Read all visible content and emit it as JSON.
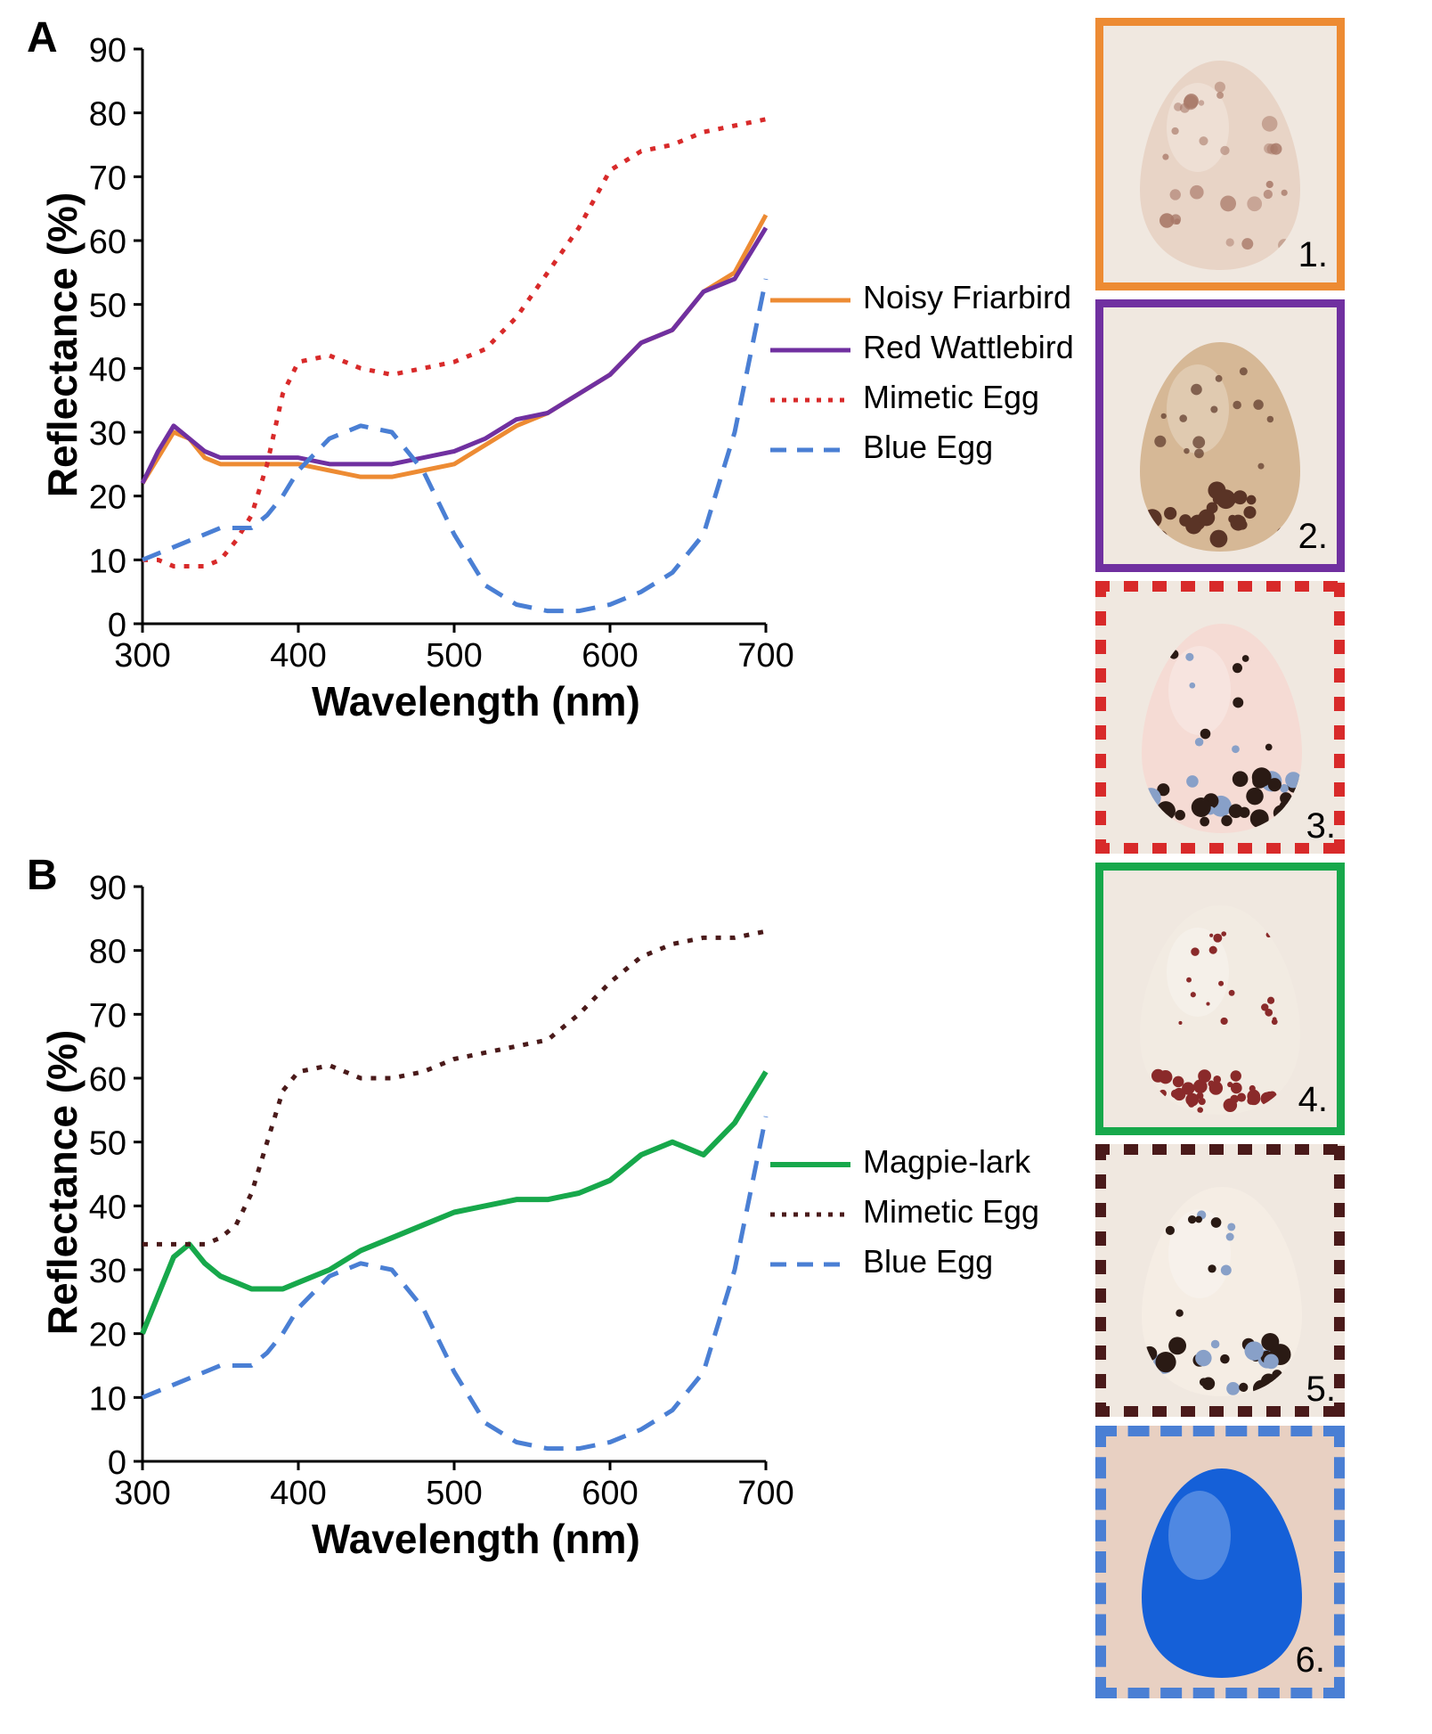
{
  "chartA": {
    "type": "line",
    "label": "A",
    "xlabel": "Wavelength (nm)",
    "ylabel": "Reflectance (%)",
    "xlim": [
      300,
      700
    ],
    "ylim": [
      0,
      90
    ],
    "xtick_step": 100,
    "ytick_step": 10,
    "tick_fontsize": 38,
    "label_fontsize": 46,
    "label_fontweight": "bold",
    "grid": false,
    "background_color": "#ffffff",
    "axis_color": "#000000",
    "series": [
      {
        "name": "Noisy Friarbird",
        "color": "#ed8b33",
        "dash": "none",
        "width": 5,
        "x": [
          300,
          310,
          320,
          330,
          340,
          350,
          360,
          370,
          380,
          390,
          400,
          420,
          440,
          460,
          480,
          500,
          520,
          540,
          560,
          580,
          600,
          620,
          640,
          660,
          680,
          700
        ],
        "y": [
          22,
          26,
          30,
          29,
          26,
          25,
          25,
          25,
          25,
          25,
          25,
          24,
          23,
          23,
          24,
          25,
          28,
          31,
          33,
          36,
          39,
          44,
          46,
          52,
          55,
          64
        ]
      },
      {
        "name": "Red Wattlebird",
        "color": "#7030a0",
        "dash": "none",
        "width": 5,
        "x": [
          300,
          310,
          320,
          330,
          340,
          350,
          360,
          370,
          380,
          390,
          400,
          420,
          440,
          460,
          480,
          500,
          520,
          540,
          560,
          580,
          600,
          620,
          640,
          660,
          680,
          700
        ],
        "y": [
          22,
          27,
          31,
          29,
          27,
          26,
          26,
          26,
          26,
          26,
          26,
          25,
          25,
          25,
          26,
          27,
          29,
          32,
          33,
          36,
          39,
          44,
          46,
          52,
          54,
          62
        ]
      },
      {
        "name": "Mimetic Egg",
        "color": "#d82a2a",
        "dash": "dotted",
        "width": 5,
        "x": [
          300,
          310,
          320,
          330,
          340,
          350,
          360,
          370,
          380,
          390,
          400,
          420,
          440,
          460,
          480,
          500,
          520,
          540,
          560,
          580,
          600,
          620,
          640,
          660,
          680,
          700
        ],
        "y": [
          10,
          10,
          9,
          9,
          9,
          10,
          13,
          17,
          25,
          36,
          41,
          42,
          40,
          39,
          40,
          41,
          43,
          48,
          55,
          62,
          71,
          74,
          75,
          77,
          78,
          79
        ]
      },
      {
        "name": "Blue Egg",
        "color": "#4a7fd4",
        "dash": "dashed",
        "width": 5,
        "x": [
          300,
          310,
          320,
          330,
          340,
          350,
          360,
          370,
          380,
          390,
          400,
          420,
          440,
          460,
          480,
          500,
          520,
          540,
          560,
          580,
          600,
          620,
          640,
          660,
          680,
          700
        ],
        "y": [
          10,
          11,
          12,
          13,
          14,
          15,
          15,
          15,
          17,
          20,
          24,
          29,
          31,
          30,
          24,
          14,
          6,
          3,
          2,
          2,
          3,
          5,
          8,
          14,
          30,
          54
        ]
      }
    ]
  },
  "chartB": {
    "type": "line",
    "label": "B",
    "xlabel": "Wavelength (nm)",
    "ylabel": "Reflectance (%)",
    "xlim": [
      300,
      700
    ],
    "ylim": [
      0,
      90
    ],
    "xtick_step": 100,
    "ytick_step": 10,
    "tick_fontsize": 38,
    "label_fontsize": 46,
    "label_fontweight": "bold",
    "grid": false,
    "background_color": "#ffffff",
    "axis_color": "#000000",
    "series": [
      {
        "name": "Magpie-lark",
        "color": "#17a84b",
        "dash": "none",
        "width": 6,
        "x": [
          300,
          310,
          320,
          330,
          340,
          350,
          360,
          370,
          380,
          390,
          400,
          420,
          440,
          460,
          480,
          500,
          520,
          540,
          560,
          580,
          600,
          620,
          640,
          660,
          680,
          700
        ],
        "y": [
          20,
          26,
          32,
          34,
          31,
          29,
          28,
          27,
          27,
          27,
          28,
          30,
          33,
          35,
          37,
          39,
          40,
          41,
          41,
          42,
          44,
          48,
          50,
          48,
          53,
          61
        ]
      },
      {
        "name": "Mimetic Egg",
        "color": "#4a1a1a",
        "dash": "dotted",
        "width": 5,
        "x": [
          300,
          310,
          320,
          330,
          340,
          350,
          360,
          370,
          380,
          390,
          400,
          420,
          440,
          460,
          480,
          500,
          520,
          540,
          560,
          580,
          600,
          620,
          640,
          660,
          680,
          700
        ],
        "y": [
          34,
          34,
          34,
          34,
          34,
          35,
          37,
          42,
          50,
          58,
          61,
          62,
          60,
          60,
          61,
          63,
          64,
          65,
          66,
          70,
          75,
          79,
          81,
          82,
          82,
          83
        ]
      },
      {
        "name": "Blue Egg",
        "color": "#4a7fd4",
        "dash": "dashed",
        "width": 5,
        "x": [
          300,
          310,
          320,
          330,
          340,
          350,
          360,
          370,
          380,
          390,
          400,
          420,
          440,
          460,
          480,
          500,
          520,
          540,
          560,
          580,
          600,
          620,
          640,
          660,
          680,
          700
        ],
        "y": [
          10,
          11,
          12,
          13,
          14,
          15,
          15,
          15,
          17,
          20,
          24,
          29,
          31,
          30,
          24,
          14,
          6,
          3,
          2,
          2,
          3,
          5,
          8,
          14,
          30,
          54
        ]
      }
    ]
  },
  "eggs": [
    {
      "num": "1.",
      "border_color": "#ed8b33",
      "border_style": "solid",
      "bg": "#e8d4c6",
      "spot_color": "#a87868",
      "spot_type": "random"
    },
    {
      "num": "2.",
      "border_color": "#7030a0",
      "border_style": "solid",
      "bg": "#d6b896",
      "spot_color": "#5a3426",
      "spot_type": "heavy_bottom"
    },
    {
      "num": "3.",
      "border_color": "#d82a2a",
      "border_style": "dotted",
      "bg": "#f5dbd4",
      "spot_color": "#2a1a14",
      "spot_type": "mixed_bottom",
      "spot_color2": "#88a0c8"
    },
    {
      "num": "4.",
      "border_color": "#17a84b",
      "border_style": "solid",
      "bg": "#f2ebe2",
      "spot_color": "#8a2a2a",
      "spot_type": "red_bottom"
    },
    {
      "num": "5.",
      "border_color": "#4a1a1a",
      "border_style": "dotted",
      "bg": "#f5ede4",
      "spot_color": "#2a1a14",
      "spot_type": "mixed_bottom",
      "spot_color2": "#88a0c8"
    },
    {
      "num": "6.",
      "border_color": "#4a7fd4",
      "border_style": "dashed",
      "bg": "#e8d0c2",
      "egg_fill": "#1560d8",
      "spot_type": "none"
    }
  ],
  "legend_labels_a": [
    "Noisy Friarbird",
    "Red Wattlebird",
    "Mimetic Egg",
    "Blue Egg"
  ],
  "legend_labels_b": [
    "Magpie-lark",
    "Mimetic Egg",
    "Blue Egg"
  ]
}
